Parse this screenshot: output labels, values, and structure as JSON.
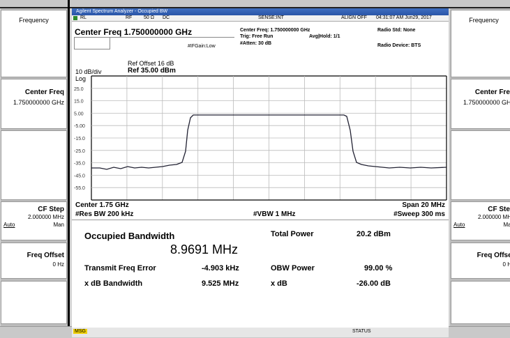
{
  "window_title": "Agilent Spectrum Analyzer - Occupied BW",
  "status_row": {
    "rl": "RL",
    "rf": "RF",
    "impedance": "50 Ω",
    "coupling": "DC",
    "sense": "SENSE:INT",
    "align": "ALIGN OFF",
    "timestamp": "04:31:07 AM Jun29, 2017"
  },
  "header": {
    "center_freq_title": "Center Freq 1.750000000 GHz",
    "if_gain": "#IFGain:Low",
    "center_freq": "Center Freq: 1.750000000 GHz",
    "trig": "Trig: Free Run",
    "avg_hold": "Avg|Hold: 1/1",
    "atten": "#Atten: 30 dB",
    "radio_std": "Radio Std: None",
    "radio_device": "Radio Device: BTS"
  },
  "softkeys": {
    "menu": "Frequency",
    "center_freq": {
      "label": "Center Freq",
      "value": "1.750000000 GHz"
    },
    "cf_step": {
      "label": "CF Step",
      "value": "2.000000 MHz",
      "auto": "Auto",
      "man": "Man"
    },
    "freq_offset": {
      "label": "Freq Offset",
      "value": "0 Hz"
    }
  },
  "graph": {
    "ref_offset": "Ref Offset 16 dB",
    "ref_level": "Ref 35.00 dBm",
    "scale": "10 dB/div",
    "scale_type": "Log",
    "y_labels": [
      "25.0",
      "15.0",
      "5.00",
      "-5.00",
      "-15.0",
      "-25.0",
      "-35.0",
      "-45.0",
      "-55.0"
    ],
    "center": "Center 1.75 GHz",
    "span": "Span 20 MHz",
    "rbw": "#Res BW 200 kHz",
    "vbw": "#VBW 1 MHz",
    "sweep": "#Sweep 300 ms"
  },
  "results": {
    "occupied_bw_label": "Occupied Bandwidth",
    "occupied_bw_value": "8.9691 MHz",
    "total_power_label": "Total Power",
    "total_power_value": "20.2 dBm",
    "freq_error_label": "Transmit Freq Error",
    "freq_error_value": "-4.903 kHz",
    "obw_power_label": "OBW Power",
    "obw_power_value": "99.00 %",
    "xdb_bw_label": "x dB Bandwidth",
    "xdb_bw_value": "9.525 MHz",
    "xdb_label": "x dB",
    "xdb_value": "-26.00 dB"
  },
  "bottom_bar": {
    "msg": "MSG",
    "status": "STATUS"
  }
}
